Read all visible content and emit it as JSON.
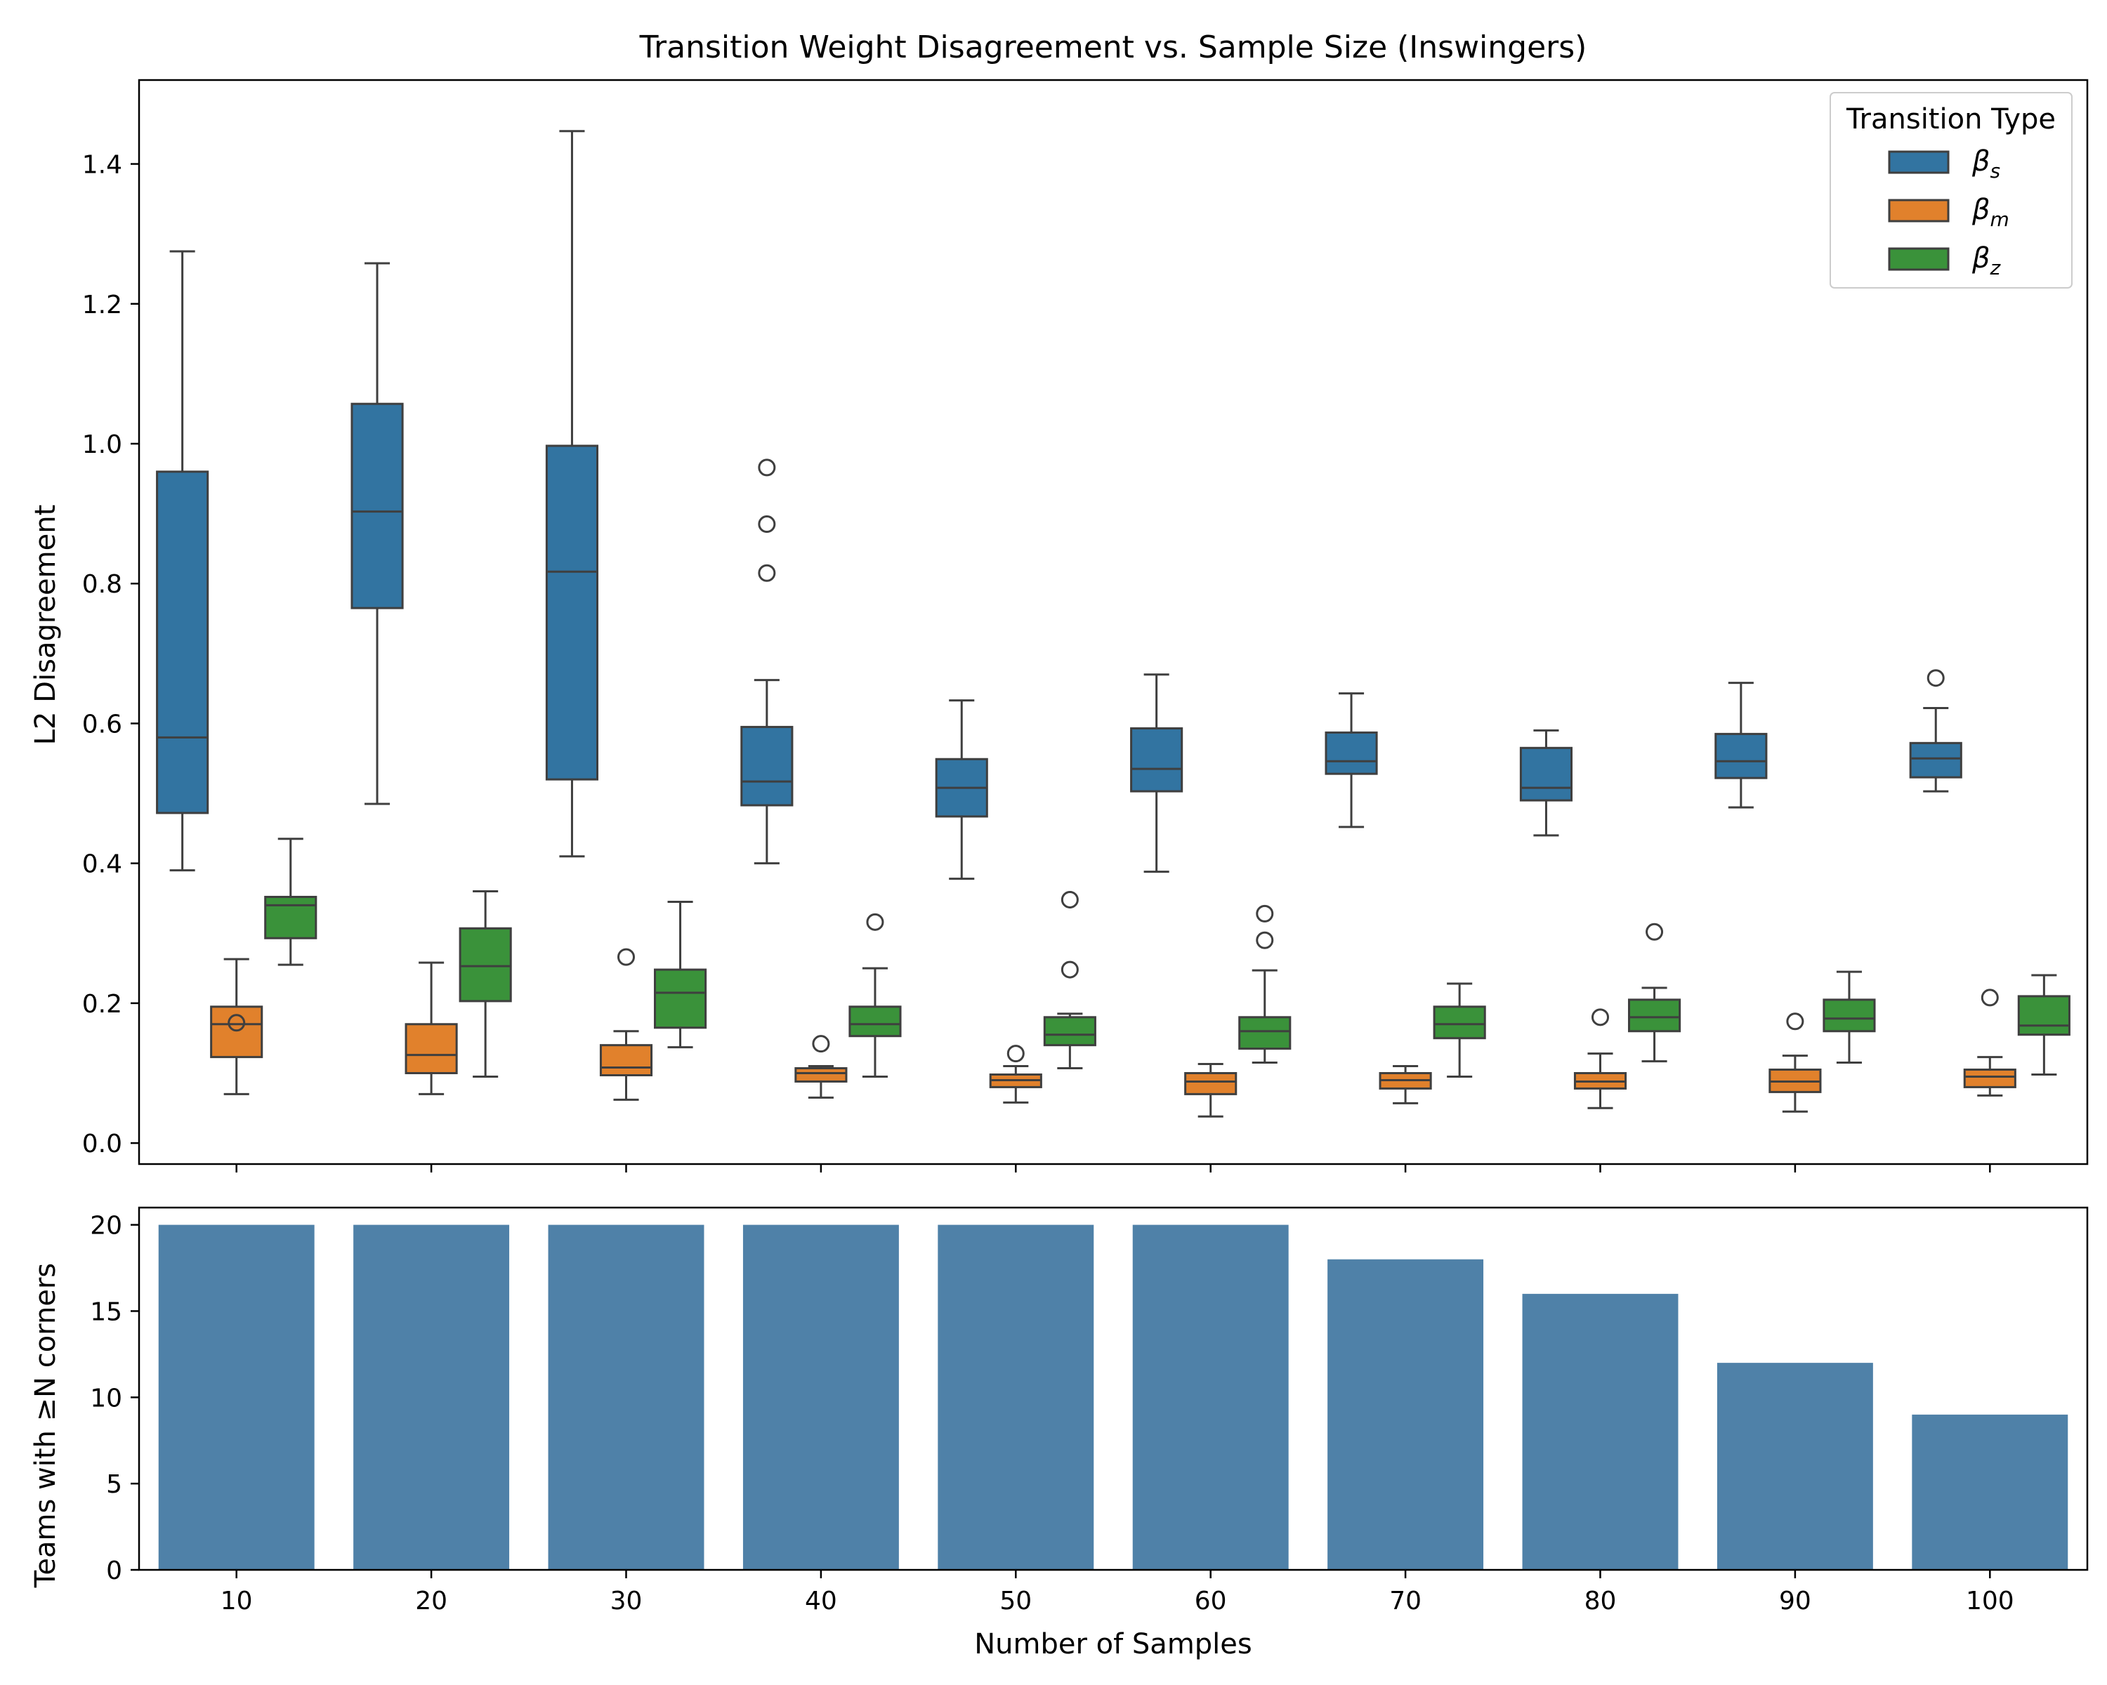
{
  "chart_data": [
    {
      "type": "box",
      "title": "Transition Weight Disagreement vs. Sample Size (Inswingers)",
      "xlabel": "",
      "ylabel": "L2 Disagreement",
      "ylim": [
        -0.03,
        1.52
      ],
      "yticks": [
        "0.0",
        "0.2",
        "0.4",
        "0.6",
        "0.8",
        "1.0",
        "1.2",
        "1.4"
      ],
      "ytick_values": [
        0,
        0.2,
        0.4,
        0.6,
        0.8,
        1.0,
        1.2,
        1.4
      ],
      "categories": [
        "10",
        "20",
        "30",
        "40",
        "50",
        "60",
        "70",
        "80",
        "90",
        "100"
      ],
      "legend": {
        "title": "Transition Type",
        "position": "top-right",
        "entries": [
          {
            "base": "β",
            "sub": "s"
          },
          {
            "base": "β",
            "sub": "m"
          },
          {
            "base": "β",
            "sub": "z"
          }
        ]
      },
      "series": [
        {
          "name": "β_s",
          "color": "#3274a1",
          "boxes": [
            {
              "whislo": 0.39,
              "q1": 0.472,
              "med": 0.58,
              "q3": 0.96,
              "whishi": 1.275,
              "fliers": []
            },
            {
              "whislo": 0.485,
              "q1": 0.765,
              "med": 0.903,
              "q3": 1.057,
              "whishi": 1.258,
              "fliers": []
            },
            {
              "whislo": 0.41,
              "q1": 0.52,
              "med": 0.817,
              "q3": 0.997,
              "whishi": 1.447,
              "fliers": []
            },
            {
              "whislo": 0.4,
              "q1": 0.483,
              "med": 0.517,
              "q3": 0.595,
              "whishi": 0.662,
              "fliers": [
                0.966,
                0.885,
                0.815
              ]
            },
            {
              "whislo": 0.378,
              "q1": 0.467,
              "med": 0.508,
              "q3": 0.549,
              "whishi": 0.633,
              "fliers": []
            },
            {
              "whislo": 0.388,
              "q1": 0.503,
              "med": 0.535,
              "q3": 0.593,
              "whishi": 0.67,
              "fliers": []
            },
            {
              "whislo": 0.452,
              "q1": 0.528,
              "med": 0.546,
              "q3": 0.587,
              "whishi": 0.643,
              "fliers": []
            },
            {
              "whislo": 0.44,
              "q1": 0.49,
              "med": 0.508,
              "q3": 0.565,
              "whishi": 0.59,
              "fliers": []
            },
            {
              "whislo": 0.48,
              "q1": 0.522,
              "med": 0.546,
              "q3": 0.585,
              "whishi": 0.658,
              "fliers": []
            },
            {
              "whislo": 0.503,
              "q1": 0.523,
              "med": 0.55,
              "q3": 0.572,
              "whishi": 0.622,
              "fliers": [
                0.665
              ]
            }
          ]
        },
        {
          "name": "β_m",
          "color": "#e1812c",
          "boxes": [
            {
              "whislo": 0.07,
              "q1": 0.123,
              "med": 0.17,
              "q3": 0.195,
              "whishi": 0.263,
              "fliers": [
                0.172
              ]
            },
            {
              "whislo": 0.07,
              "q1": 0.1,
              "med": 0.126,
              "q3": 0.17,
              "whishi": 0.258,
              "fliers": []
            },
            {
              "whislo": 0.062,
              "q1": 0.097,
              "med": 0.108,
              "q3": 0.14,
              "whishi": 0.16,
              "fliers": [
                0.266
              ]
            },
            {
              "whislo": 0.065,
              "q1": 0.088,
              "med": 0.1,
              "q3": 0.107,
              "whishi": 0.11,
              "fliers": [
                0.142
              ]
            },
            {
              "whislo": 0.058,
              "q1": 0.08,
              "med": 0.09,
              "q3": 0.098,
              "whishi": 0.11,
              "fliers": [
                0.128
              ]
            },
            {
              "whislo": 0.038,
              "q1": 0.07,
              "med": 0.088,
              "q3": 0.1,
              "whishi": 0.113,
              "fliers": []
            },
            {
              "whislo": 0.057,
              "q1": 0.078,
              "med": 0.09,
              "q3": 0.1,
              "whishi": 0.11,
              "fliers": []
            },
            {
              "whislo": 0.05,
              "q1": 0.078,
              "med": 0.088,
              "q3": 0.1,
              "whishi": 0.128,
              "fliers": [
                0.18
              ]
            },
            {
              "whislo": 0.045,
              "q1": 0.073,
              "med": 0.088,
              "q3": 0.105,
              "whishi": 0.125,
              "fliers": [
                0.174
              ]
            },
            {
              "whislo": 0.068,
              "q1": 0.08,
              "med": 0.095,
              "q3": 0.105,
              "whishi": 0.123,
              "fliers": [
                0.208
              ]
            }
          ]
        },
        {
          "name": "β_z",
          "color": "#3a923a",
          "boxes": [
            {
              "whislo": 0.255,
              "q1": 0.293,
              "med": 0.34,
              "q3": 0.352,
              "whishi": 0.435,
              "fliers": []
            },
            {
              "whislo": 0.095,
              "q1": 0.203,
              "med": 0.253,
              "q3": 0.307,
              "whishi": 0.36,
              "fliers": []
            },
            {
              "whislo": 0.137,
              "q1": 0.165,
              "med": 0.215,
              "q3": 0.248,
              "whishi": 0.345,
              "fliers": []
            },
            {
              "whislo": 0.095,
              "q1": 0.153,
              "med": 0.17,
              "q3": 0.195,
              "whishi": 0.25,
              "fliers": [
                0.316
              ]
            },
            {
              "whislo": 0.107,
              "q1": 0.14,
              "med": 0.155,
              "q3": 0.18,
              "whishi": 0.185,
              "fliers": [
                0.348,
                0.248
              ]
            },
            {
              "whislo": 0.115,
              "q1": 0.135,
              "med": 0.16,
              "q3": 0.18,
              "whishi": 0.247,
              "fliers": [
                0.328,
                0.29
              ]
            },
            {
              "whislo": 0.095,
              "q1": 0.15,
              "med": 0.17,
              "q3": 0.195,
              "whishi": 0.228,
              "fliers": []
            },
            {
              "whislo": 0.117,
              "q1": 0.16,
              "med": 0.18,
              "q3": 0.205,
              "whishi": 0.222,
              "fliers": [
                0.302
              ]
            },
            {
              "whislo": 0.115,
              "q1": 0.16,
              "med": 0.178,
              "q3": 0.205,
              "whishi": 0.245,
              "fliers": []
            },
            {
              "whislo": 0.098,
              "q1": 0.155,
              "med": 0.168,
              "q3": 0.21,
              "whishi": 0.24,
              "fliers": []
            }
          ]
        }
      ]
    },
    {
      "type": "bar",
      "title": "",
      "xlabel": "Number of Samples",
      "ylabel": "Teams with ≥N corners",
      "categories": [
        "10",
        "20",
        "30",
        "40",
        "50",
        "60",
        "70",
        "80",
        "90",
        "100"
      ],
      "values": [
        20,
        20,
        20,
        20,
        20,
        20,
        18,
        16,
        12,
        9
      ],
      "ylim": [
        0,
        21.0
      ],
      "yticks": [
        "0",
        "5",
        "10",
        "15",
        "20"
      ],
      "ytick_values": [
        0,
        5,
        10,
        15,
        20
      ],
      "color": "#4f81a8"
    }
  ]
}
